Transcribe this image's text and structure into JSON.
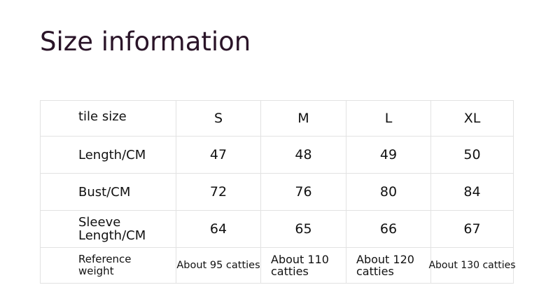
{
  "title": "Size information",
  "table": {
    "header": [
      "tile size",
      "S",
      "M",
      "L",
      "XL"
    ],
    "rows": [
      [
        "Length/CM",
        "47",
        "48",
        "49",
        "50"
      ],
      [
        "Bust/CM",
        "72",
        "76",
        "80",
        "84"
      ],
      [
        "Sleeve Length/CM",
        "64",
        "65",
        "66",
        "67"
      ],
      [
        "Reference weight",
        "About 95 catties",
        "About 110 catties",
        "About 120 catties",
        "About 130 catties"
      ]
    ]
  }
}
